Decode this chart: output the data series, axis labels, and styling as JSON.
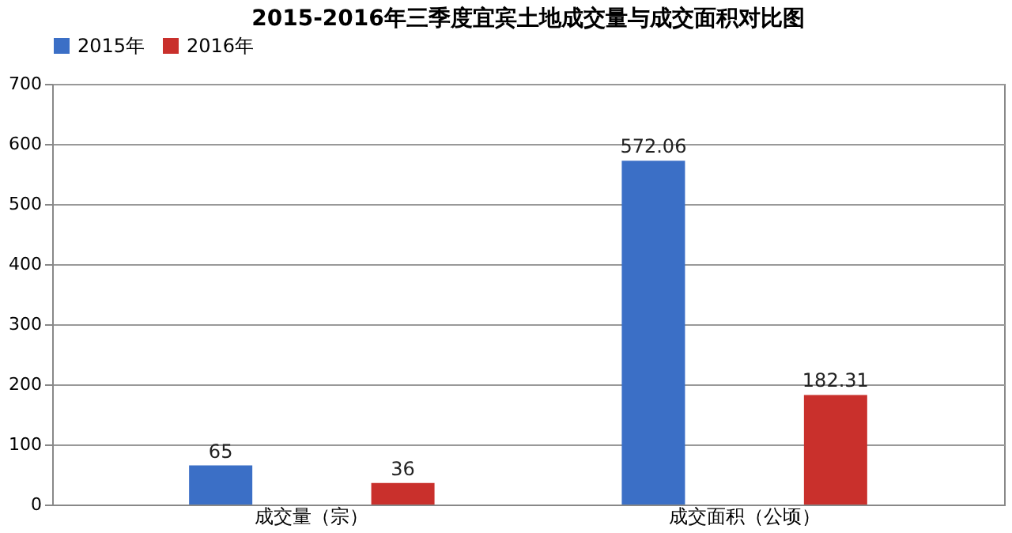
{
  "chart_data": {
    "type": "bar",
    "title": "2015-2016年三季度宜宾土地成交量与成交面积对比图",
    "categories": [
      "成交量（宗）",
      "成交面积（公顷）"
    ],
    "series": [
      {
        "name": "2015年",
        "color": "#3b6fc6",
        "values": [
          65,
          572.06
        ]
      },
      {
        "name": "2016年",
        "color": "#c9302c",
        "values": [
          36,
          182.31
        ]
      }
    ],
    "ylim": [
      0,
      700
    ],
    "yticks": [
      0,
      100,
      200,
      300,
      400,
      500,
      600,
      700
    ],
    "grid": "y",
    "legend": "top",
    "data_labels": true
  }
}
